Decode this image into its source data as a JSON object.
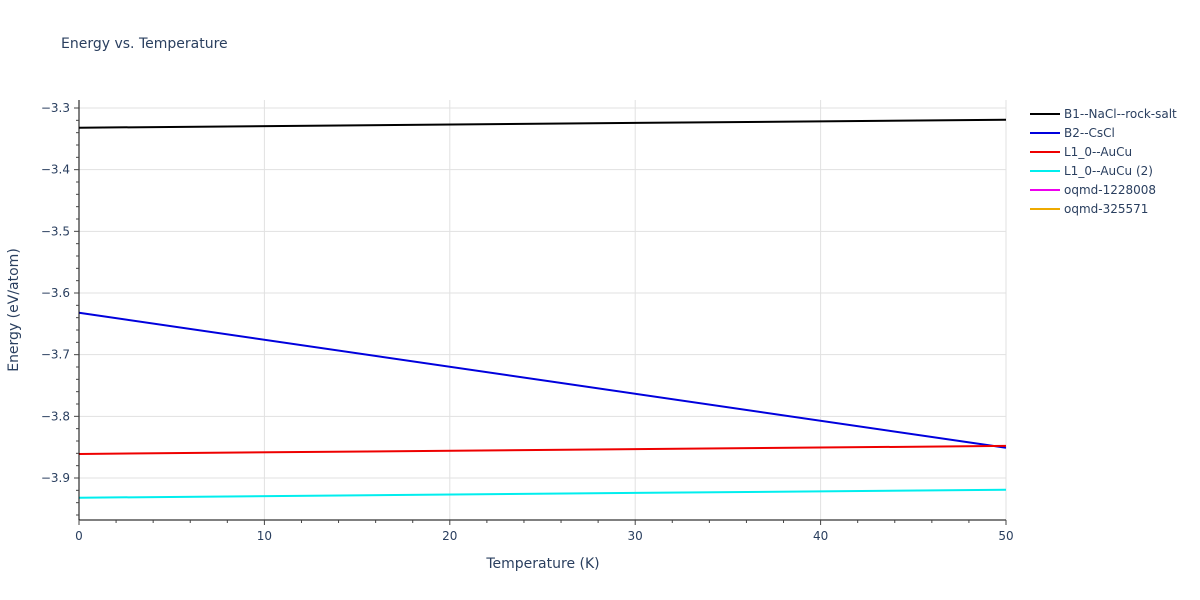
{
  "title": "Energy vs. Temperature",
  "chart_data": {
    "type": "line",
    "title": "Energy vs. Temperature",
    "xlabel": "Temperature (K)",
    "ylabel": "Energy (eV/atom)",
    "xlim": [
      0,
      50
    ],
    "ylim": [
      -3.97,
      -3.288
    ],
    "x_ticks": [
      0,
      10,
      20,
      30,
      40,
      50
    ],
    "x_tick_labels": [
      "0",
      "10",
      "20",
      "30",
      "40",
      "50"
    ],
    "y_ticks": [
      -3.3,
      -3.4,
      -3.5,
      -3.6,
      -3.7,
      -3.8,
      -3.9
    ],
    "y_tick_labels": [
      "−3.3",
      "−3.4",
      "−3.5",
      "−3.6",
      "−3.7",
      "−3.8",
      "−3.9"
    ],
    "grid": true,
    "legend_position": "right",
    "series": [
      {
        "name": "B1--NaCl--rock-salt",
        "color": "#000000",
        "x": [
          0,
          50
        ],
        "values": [
          -3.332,
          -3.319
        ]
      },
      {
        "name": "B2--CsCl",
        "color": "#0000dd",
        "x": [
          0,
          50
        ],
        "values": [
          -3.632,
          -3.851
        ]
      },
      {
        "name": "L1_0--AuCu",
        "color": "#ee0000",
        "x": [
          0,
          50
        ],
        "values": [
          -3.861,
          -3.848
        ]
      },
      {
        "name": "L1_0--AuCu (2)",
        "color": "#00eeee",
        "x": [
          0,
          50
        ],
        "values": [
          -3.932,
          -3.919
        ]
      },
      {
        "name": "oqmd-1228008",
        "color": "#ee00ee",
        "x": [],
        "values": []
      },
      {
        "name": "oqmd-325571",
        "color": "#eeaa00",
        "x": [],
        "values": []
      }
    ]
  }
}
